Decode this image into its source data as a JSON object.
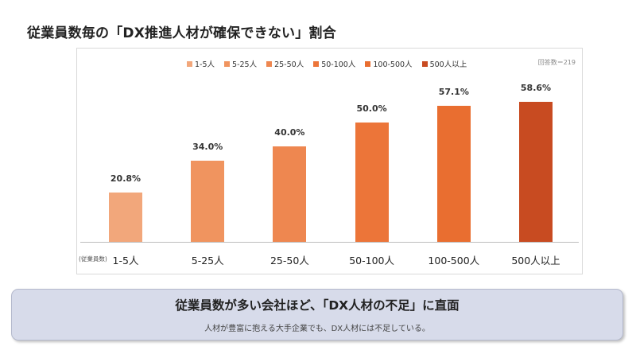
{
  "page": {
    "title": "従業員数毎の「DX推進人材が確保できない」割合"
  },
  "chart_data": {
    "type": "bar",
    "title": "",
    "categories": [
      "1-5人",
      "5-25人",
      "25-50人",
      "50-100人",
      "100-500人",
      "500人以上"
    ],
    "values": [
      20.8,
      34.0,
      40.0,
      50.0,
      57.1,
      58.6
    ],
    "value_labels": [
      "20.8%",
      "34.0%",
      "40.0%",
      "50.0%",
      "57.1%",
      "58.6%"
    ],
    "colors": [
      "#f2a77b",
      "#f0945f",
      "#ee8750",
      "#ec7539",
      "#e96e30",
      "#c84b21"
    ],
    "xlabel": "(従業員数)",
    "ylabel": "",
    "ylim": [
      0,
      62
    ],
    "grid": false,
    "legend": {
      "placement": "top",
      "entries": [
        "1-5人",
        "5-25人",
        "25-50人",
        "50-100人",
        "100-500人",
        "500人以上"
      ]
    },
    "respondents": "回答数＝219"
  },
  "summary": {
    "headline": "従業員数が多い会社ほど、「DX人材の不足」に直面",
    "subtext": "人材が豊富に抱える大手企業でも、DX人材には不足している。"
  }
}
